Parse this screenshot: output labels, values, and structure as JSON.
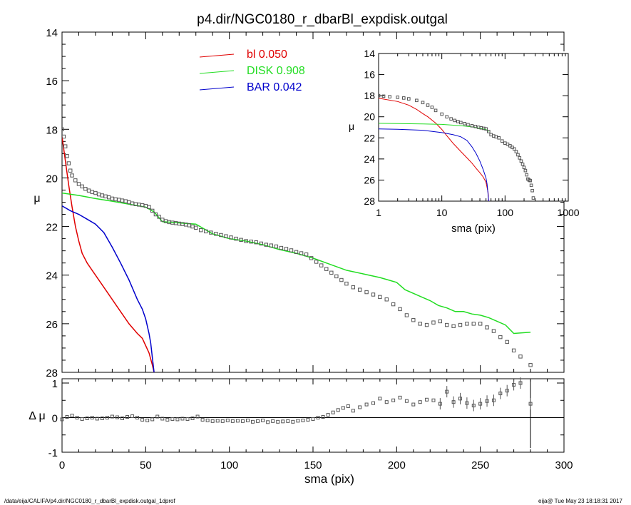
{
  "title": "p4.dir/NGC0180_r_dbarBl_expdisk.outgal",
  "footer_left": "/data/eija/CALIFA/p4.dir/NGC0180_r_dbarBl_expdisk.outgal_1dprof",
  "footer_right": "eija@  Tue May 23 18:18:31 2017",
  "colors": {
    "bl": "#e00000",
    "disk": "#22dd22",
    "bar": "#0000cc",
    "data": "#555555"
  },
  "chart_data": [
    {
      "id": "main",
      "type": "line",
      "xlabel": "",
      "ylabel": "μ",
      "xlim": [
        0,
        300
      ],
      "ylim": [
        28,
        14
      ],
      "y_inverted": true,
      "y_ticks": [
        14,
        16,
        18,
        20,
        22,
        24,
        26,
        28
      ],
      "legend": {
        "placement": "top-center",
        "entries": [
          {
            "label": "bl",
            "value": "0.050",
            "color": "#e00000"
          },
          {
            "label": "DISK",
            "value": "0.908",
            "color": "#22dd22"
          },
          {
            "label": "BAR",
            "value": "0.042",
            "color": "#0000cc"
          }
        ]
      },
      "series": [
        {
          "name": "bl",
          "color": "#e00000",
          "x": [
            0,
            2,
            4,
            6,
            8,
            10,
            12,
            15,
            18,
            20,
            25,
            30,
            35,
            40,
            45,
            48,
            50,
            52,
            54,
            55
          ],
          "y": [
            18.3,
            19.3,
            20.3,
            21.2,
            22.0,
            22.6,
            23.1,
            23.5,
            23.8,
            24.0,
            24.5,
            25.0,
            25.5,
            26.0,
            26.4,
            26.6,
            26.9,
            27.2,
            27.7,
            28.0
          ]
        },
        {
          "name": "DISK",
          "color": "#22dd22",
          "x": [
            0,
            10,
            20,
            30,
            40,
            50,
            55,
            60,
            70,
            80,
            90,
            100,
            110,
            120,
            130,
            140,
            150,
            160,
            170,
            180,
            190,
            195,
            200,
            205,
            210,
            215,
            220,
            225,
            230,
            235,
            240,
            245,
            250,
            255,
            260,
            265,
            270,
            280
          ],
          "y": [
            20.62,
            20.72,
            20.85,
            20.96,
            21.08,
            21.2,
            21.4,
            21.8,
            21.85,
            21.9,
            22.3,
            22.5,
            22.6,
            22.75,
            22.95,
            23.1,
            23.3,
            23.55,
            23.8,
            23.95,
            24.1,
            24.2,
            24.3,
            24.6,
            24.75,
            24.9,
            25.05,
            25.25,
            25.35,
            25.5,
            25.5,
            25.6,
            25.65,
            25.75,
            25.9,
            26.05,
            26.4,
            26.35
          ]
        },
        {
          "name": "BAR",
          "color": "#0000cc",
          "x": [
            0,
            5,
            10,
            15,
            20,
            25,
            30,
            35,
            40,
            45,
            48,
            50,
            52,
            53,
            54,
            55
          ],
          "y": [
            21.15,
            21.35,
            21.5,
            21.7,
            21.9,
            22.25,
            22.85,
            23.5,
            24.2,
            25.0,
            25.4,
            25.8,
            26.4,
            26.8,
            27.4,
            28.0
          ]
        },
        {
          "name": "",
          "style": "points",
          "color": "#555555",
          "x": [
            0,
            1,
            2,
            3,
            4,
            5,
            6,
            8,
            10,
            12,
            14,
            16,
            18,
            20,
            22,
            24,
            26,
            28,
            30,
            32,
            34,
            36,
            38,
            40,
            42,
            44,
            46,
            48,
            50,
            52,
            54,
            56,
            58,
            60,
            62,
            64,
            66,
            68,
            70,
            72,
            74,
            76,
            78,
            80,
            83,
            86,
            89,
            92,
            95,
            98,
            101,
            104,
            107,
            110,
            113,
            116,
            119,
            122,
            125,
            128,
            131,
            134,
            137,
            140,
            143,
            146,
            149,
            152,
            155,
            158,
            161,
            164,
            167,
            170,
            174,
            178,
            182,
            186,
            190,
            194,
            198,
            202,
            206,
            210,
            214,
            218,
            222,
            226,
            230,
            234,
            238,
            242,
            246,
            250,
            254,
            258,
            262,
            266,
            270,
            274,
            280
          ],
          "y": [
            18.0,
            18.3,
            18.7,
            19.1,
            19.4,
            19.7,
            19.9,
            20.1,
            20.25,
            20.35,
            20.45,
            20.52,
            20.58,
            20.62,
            20.68,
            20.72,
            20.76,
            20.8,
            20.85,
            20.88,
            20.9,
            20.93,
            20.96,
            21.0,
            21.05,
            21.08,
            21.1,
            21.12,
            21.15,
            21.2,
            21.35,
            21.5,
            21.6,
            21.72,
            21.78,
            21.82,
            21.84,
            21.86,
            21.88,
            21.9,
            21.92,
            21.95,
            22.0,
            22.05,
            22.15,
            22.2,
            22.25,
            22.3,
            22.35,
            22.4,
            22.45,
            22.5,
            22.55,
            22.6,
            22.62,
            22.65,
            22.7,
            22.75,
            22.78,
            22.82,
            22.88,
            22.92,
            22.98,
            23.05,
            23.1,
            23.15,
            23.3,
            23.45,
            23.6,
            23.75,
            23.9,
            24.05,
            24.2,
            24.35,
            24.5,
            24.6,
            24.7,
            24.8,
            24.9,
            25.0,
            25.2,
            25.4,
            25.65,
            25.85,
            26.0,
            26.05,
            25.95,
            25.9,
            26.05,
            26.1,
            26.05,
            26.0,
            26.0,
            26.0,
            26.15,
            26.3,
            26.55,
            26.75,
            27.1,
            27.35,
            27.7
          ]
        }
      ]
    },
    {
      "id": "residual",
      "type": "scatter",
      "xlabel": "sma (pix)",
      "ylabel": "Δ μ",
      "xlim": [
        0,
        300
      ],
      "ylim": [
        -1,
        1
      ],
      "x_ticks": [
        0,
        50,
        100,
        150,
        200,
        250,
        300
      ],
      "y_ticks": [
        -1,
        0,
        1
      ],
      "x": [
        0,
        3,
        6,
        9,
        12,
        15,
        18,
        21,
        24,
        27,
        30,
        33,
        36,
        39,
        42,
        45,
        48,
        51,
        54,
        57,
        60,
        63,
        66,
        69,
        72,
        75,
        78,
        81,
        84,
        87,
        90,
        93,
        96,
        99,
        102,
        105,
        108,
        111,
        114,
        117,
        120,
        123,
        126,
        129,
        132,
        135,
        138,
        141,
        144,
        147,
        150,
        153,
        156,
        159,
        162,
        165,
        168,
        171,
        174,
        178,
        182,
        186,
        190,
        194,
        198,
        202,
        206,
        210,
        214,
        218,
        222,
        226,
        230,
        234,
        238,
        242,
        246,
        250,
        254,
        258,
        262,
        266,
        270,
        274,
        280
      ],
      "y": [
        -0.05,
        0.02,
        0.06,
        0.0,
        -0.04,
        -0.02,
        0.0,
        -0.03,
        -0.02,
        0.0,
        0.03,
        0.01,
        -0.02,
        0.02,
        0.04,
        0.0,
        -0.06,
        -0.08,
        -0.05,
        0.03,
        -0.03,
        -0.06,
        -0.04,
        -0.05,
        -0.03,
        -0.04,
        -0.02,
        0.03,
        -0.06,
        -0.08,
        -0.1,
        -0.09,
        -0.1,
        -0.08,
        -0.1,
        -0.09,
        -0.1,
        -0.08,
        -0.12,
        -0.1,
        -0.08,
        -0.13,
        -0.1,
        -0.12,
        -0.11,
        -0.1,
        -0.12,
        -0.09,
        -0.08,
        -0.06,
        -0.04,
        0.0,
        0.02,
        0.08,
        0.15,
        0.22,
        0.28,
        0.33,
        0.2,
        0.3,
        0.38,
        0.42,
        0.55,
        0.45,
        0.5,
        0.58,
        0.48,
        0.38,
        0.45,
        0.52,
        0.5,
        0.4,
        0.75,
        0.45,
        0.55,
        0.42,
        0.35,
        0.4,
        0.48,
        0.5,
        0.7,
        0.78,
        0.95,
        1.0,
        0.4
      ]
    },
    {
      "id": "inset",
      "type": "line",
      "xscale": "log",
      "xlabel": "sma (pix)",
      "ylabel": "μ",
      "xlim": [
        1,
        1000
      ],
      "ylim": [
        28,
        14
      ],
      "y_inverted": true,
      "x_ticks": [
        1,
        10,
        100,
        1000
      ],
      "y_ticks": [
        14,
        16,
        18,
        20,
        22,
        24,
        26,
        28
      ],
      "series": [
        {
          "name": "bl",
          "color": "#e00000",
          "x": [
            1,
            2,
            3,
            4,
            5,
            6,
            8,
            10,
            12,
            15,
            18,
            20,
            25,
            30,
            35,
            40,
            45,
            50,
            54,
            55
          ],
          "y": [
            18.25,
            18.55,
            18.9,
            19.3,
            19.7,
            20.0,
            20.6,
            21.2,
            21.8,
            22.5,
            23.0,
            23.3,
            23.9,
            24.4,
            24.9,
            25.3,
            25.7,
            26.2,
            27.2,
            28.0
          ]
        },
        {
          "name": "DISK",
          "color": "#22dd22",
          "x": [
            1,
            2,
            5,
            10,
            20,
            30,
            40,
            50,
            55
          ],
          "y": [
            20.62,
            20.64,
            20.68,
            20.72,
            20.85,
            20.96,
            21.08,
            21.2,
            21.4
          ]
        },
        {
          "name": "BAR",
          "color": "#0000cc",
          "x": [
            1,
            2,
            5,
            10,
            15,
            20,
            25,
            30,
            35,
            40,
            45,
            50,
            52,
            54,
            55,
            57
          ],
          "y": [
            21.15,
            21.18,
            21.28,
            21.5,
            21.7,
            21.9,
            22.25,
            22.85,
            23.5,
            24.2,
            25.0,
            25.8,
            26.4,
            27.4,
            28.0,
            28.0
          ]
        },
        {
          "name": "",
          "style": "points",
          "color": "#555555",
          "x": [
            1,
            1.2,
            1.5,
            2,
            2.5,
            3,
            4,
            5,
            6,
            7,
            8,
            10,
            12,
            14,
            16,
            18,
            20,
            23,
            26,
            30,
            34,
            38,
            42,
            46,
            50,
            55,
            60,
            66,
            72,
            80,
            90,
            100,
            110,
            120,
            130,
            140,
            150,
            160,
            170,
            180,
            190,
            200,
            210,
            220,
            230,
            240,
            250,
            260,
            270,
            280
          ],
          "y": [
            18.0,
            18.05,
            18.1,
            18.15,
            18.22,
            18.3,
            18.45,
            18.65,
            18.9,
            19.1,
            19.4,
            19.75,
            20.0,
            20.2,
            20.35,
            20.45,
            20.55,
            20.65,
            20.75,
            20.85,
            20.92,
            21.0,
            21.05,
            21.1,
            21.15,
            21.4,
            21.7,
            21.82,
            21.9,
            22.0,
            22.3,
            22.5,
            22.6,
            22.75,
            22.9,
            23.05,
            23.3,
            23.6,
            23.9,
            24.2,
            24.5,
            24.8,
            25.1,
            25.5,
            25.9,
            26.0,
            26.05,
            26.5,
            27.0,
            27.7
          ]
        }
      ]
    }
  ]
}
